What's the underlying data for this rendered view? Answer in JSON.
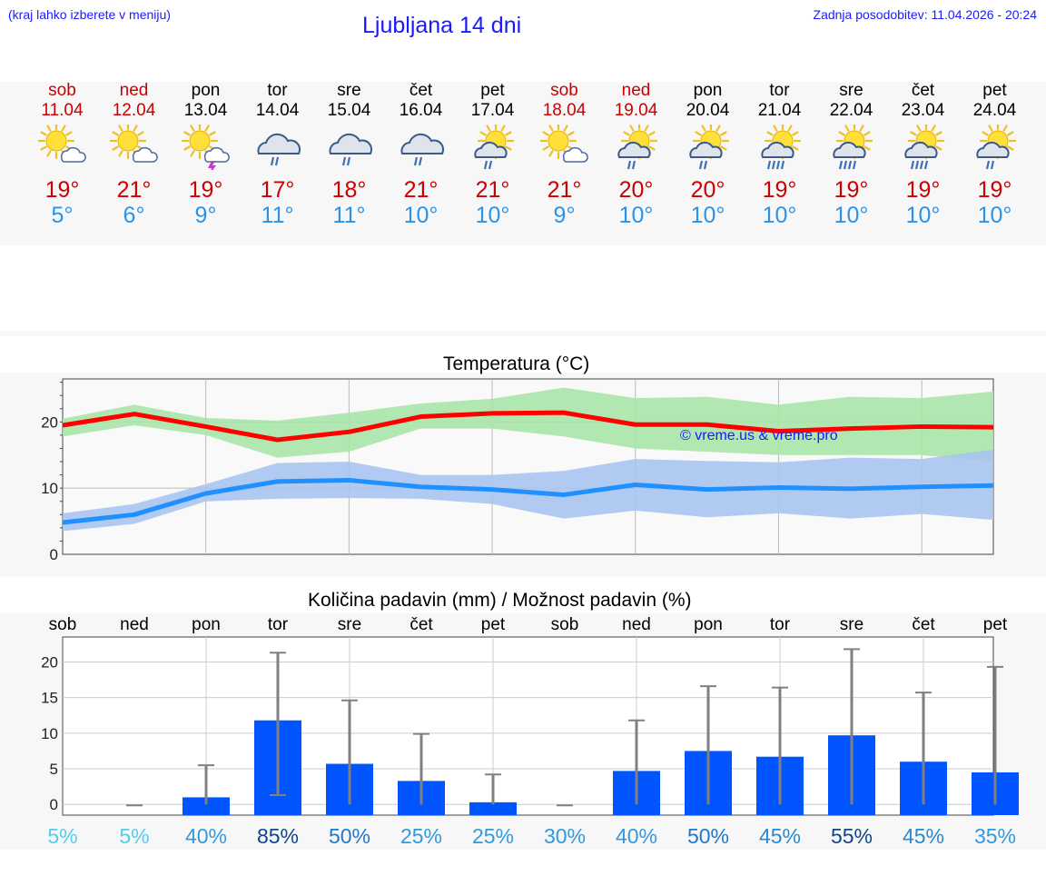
{
  "header": {
    "hint": "(kraj lahko izberete v meniju)",
    "title": "Ljubljana 14 dni",
    "updated": "Zadnja posodobitev: 11.04.2026 - 20:24"
  },
  "colors": {
    "link_blue": "#1a1aff",
    "max_red": "#cc0000",
    "min_blue": "#2a93e8",
    "bar_blue": "#0055ff"
  },
  "days": [
    {
      "name": "sob",
      "date": "11.04",
      "weekend": true,
      "icon": "sun-cloud-icon",
      "tmax": "19°",
      "tmin": "5°"
    },
    {
      "name": "ned",
      "date": "12.04",
      "weekend": true,
      "icon": "sun-cloud-icon",
      "tmax": "21°",
      "tmin": "6°"
    },
    {
      "name": "pon",
      "date": "13.04",
      "weekend": false,
      "icon": "sun-storm-icon",
      "tmax": "19°",
      "tmin": "9°"
    },
    {
      "name": "tor",
      "date": "14.04",
      "weekend": false,
      "icon": "cloud-rain-icon",
      "tmax": "17°",
      "tmin": "11°"
    },
    {
      "name": "sre",
      "date": "15.04",
      "weekend": false,
      "icon": "cloud-rain-icon",
      "tmax": "18°",
      "tmin": "11°"
    },
    {
      "name": "čet",
      "date": "16.04",
      "weekend": false,
      "icon": "cloud-rain-icon",
      "tmax": "21°",
      "tmin": "10°"
    },
    {
      "name": "pet",
      "date": "17.04",
      "weekend": false,
      "icon": "sun-rain-icon",
      "tmax": "21°",
      "tmin": "10°"
    },
    {
      "name": "sob",
      "date": "18.04",
      "weekend": true,
      "icon": "sun-cloud-icon",
      "tmax": "21°",
      "tmin": "9°"
    },
    {
      "name": "ned",
      "date": "19.04",
      "weekend": true,
      "icon": "sun-rain-icon",
      "tmax": "20°",
      "tmin": "10°"
    },
    {
      "name": "pon",
      "date": "20.04",
      "weekend": false,
      "icon": "sun-rain-icon",
      "tmax": "20°",
      "tmin": "10°"
    },
    {
      "name": "tor",
      "date": "21.04",
      "weekend": false,
      "icon": "sun-heavy-rain-icon",
      "tmax": "19°",
      "tmin": "10°"
    },
    {
      "name": "sre",
      "date": "22.04",
      "weekend": false,
      "icon": "sun-heavy-rain-icon",
      "tmax": "19°",
      "tmin": "10°"
    },
    {
      "name": "čet",
      "date": "23.04",
      "weekend": false,
      "icon": "sun-heavy-rain-icon",
      "tmax": "19°",
      "tmin": "10°"
    },
    {
      "name": "pet",
      "date": "24.04",
      "weekend": false,
      "icon": "sun-rain-icon",
      "tmax": "19°",
      "tmin": "10°"
    }
  ],
  "chart_data": [
    {
      "type": "line",
      "title": "Temperatura (°C)",
      "watermark": "© vreme.us & vreme.pro",
      "x": [
        0,
        1,
        2,
        3,
        4,
        5,
        6,
        7,
        8,
        9,
        10,
        11,
        12,
        13
      ],
      "ylim": [
        0,
        26.5
      ],
      "yticks": [
        0,
        10,
        20
      ],
      "series": [
        {
          "name": "max",
          "color": "#ff0000",
          "values": [
            19.5,
            21.2,
            19.3,
            17.3,
            18.5,
            20.8,
            21.3,
            21.4,
            19.6,
            19.6,
            18.6,
            19.0,
            19.3,
            19.2
          ]
        },
        {
          "name": "max_band_low",
          "color": "#a8e6a8",
          "values": [
            17.8,
            19.5,
            18.0,
            14.6,
            15.5,
            19.0,
            19.0,
            17.8,
            16.0,
            15.5,
            15.0,
            15.0,
            15.0,
            14.0
          ]
        },
        {
          "name": "max_band_high",
          "color": "#a8e6a8",
          "values": [
            20.5,
            22.6,
            20.6,
            20.2,
            21.4,
            22.8,
            23.5,
            25.2,
            23.6,
            23.8,
            22.6,
            23.8,
            23.6,
            24.6
          ]
        },
        {
          "name": "min",
          "color": "#2090ff",
          "values": [
            4.8,
            6.0,
            9.2,
            11.0,
            11.2,
            10.2,
            9.8,
            9.0,
            10.5,
            9.8,
            10.1,
            9.9,
            10.2,
            10.4
          ]
        },
        {
          "name": "min_band_low",
          "color": "#a8c4f0",
          "values": [
            3.5,
            4.6,
            8.0,
            8.4,
            8.5,
            8.4,
            7.6,
            5.4,
            6.6,
            5.6,
            6.2,
            5.4,
            6.1,
            5.2
          ]
        },
        {
          "name": "min_band_high",
          "color": "#a8c4f0",
          "values": [
            6.2,
            7.6,
            10.6,
            13.8,
            14.0,
            12.0,
            12.0,
            12.6,
            14.4,
            14.1,
            13.9,
            14.6,
            14.4,
            15.8
          ]
        }
      ]
    },
    {
      "type": "bar",
      "title": "Količina padavin (mm) / Možnost padavin (%)",
      "categories": [
        "sob",
        "ned",
        "pon",
        "tor",
        "sre",
        "čet",
        "pet",
        "sob",
        "ned",
        "pon",
        "tor",
        "sre",
        "čet",
        "pet"
      ],
      "ylim": [
        -1.5,
        23.5
      ],
      "yticks": [
        0,
        5,
        10,
        15,
        20
      ],
      "values": [
        0,
        0,
        1.0,
        11.8,
        5.7,
        3.3,
        0.3,
        0,
        4.7,
        7.5,
        6.7,
        9.7,
        6.0,
        4.5
      ],
      "error_high": [
        null,
        0,
        5.5,
        21.3,
        14.6,
        9.9,
        4.2,
        0,
        11.8,
        16.6,
        16.4,
        21.8,
        15.7,
        19.3
      ],
      "error_low": [
        null,
        0,
        0,
        1.3,
        0,
        0,
        0,
        0,
        0,
        0,
        0,
        0,
        0,
        0
      ],
      "probability": [
        "5%",
        "5%",
        "40%",
        "85%",
        "50%",
        "25%",
        "25%",
        "30%",
        "40%",
        "50%",
        "45%",
        "55%",
        "45%",
        "35%"
      ],
      "probability_colors": [
        "#55ccee",
        "#55ccee",
        "#3399dd",
        "#114488",
        "#2277cc",
        "#3399dd",
        "#3399dd",
        "#3399dd",
        "#3399dd",
        "#2277cc",
        "#2a88cc",
        "#114488",
        "#2a88cc",
        "#3399dd"
      ]
    }
  ]
}
